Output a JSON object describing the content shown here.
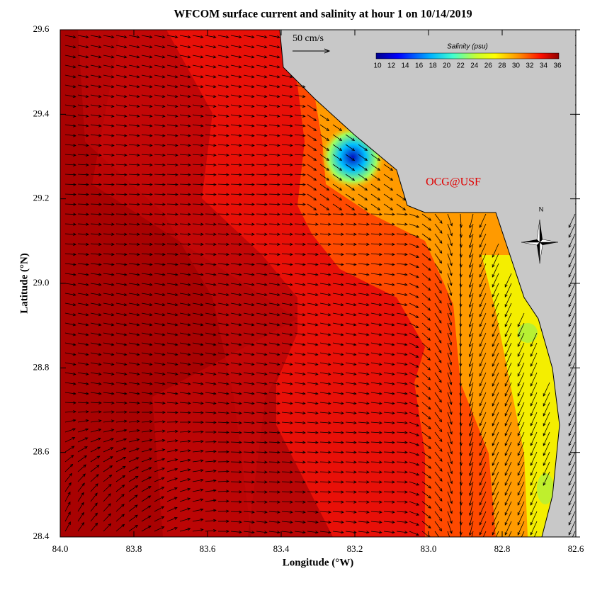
{
  "title": "WFCOM surface current and salinity at hour 1 on 10/14/2019",
  "x_axis": {
    "label": "Longitude (°W)",
    "lim": [
      84,
      82.6
    ],
    "ticks": [
      {
        "value": 84,
        "label": "84.0"
      },
      83.8,
      83.6,
      83.4,
      83.2,
      {
        "value": 83,
        "label": "83.0"
      },
      82.8,
      82.6
    ]
  },
  "y_axis": {
    "label": "Latitude (°N)",
    "lim": [
      28.4,
      29.6
    ],
    "ticks": [
      28.4,
      28.6,
      28.8,
      {
        "value": 29,
        "label": "29.0"
      },
      29.2,
      29.4,
      29.6
    ]
  },
  "colorbar": {
    "label": "Salinity (psu)",
    "lim": [
      10,
      36
    ],
    "ticks": [
      10,
      12,
      14,
      16,
      18,
      20,
      22,
      24,
      26,
      28,
      30,
      32,
      34,
      36
    ]
  },
  "scale_label": "50 cm/s",
  "credit": "OCG@USF",
  "compass": "N"
}
